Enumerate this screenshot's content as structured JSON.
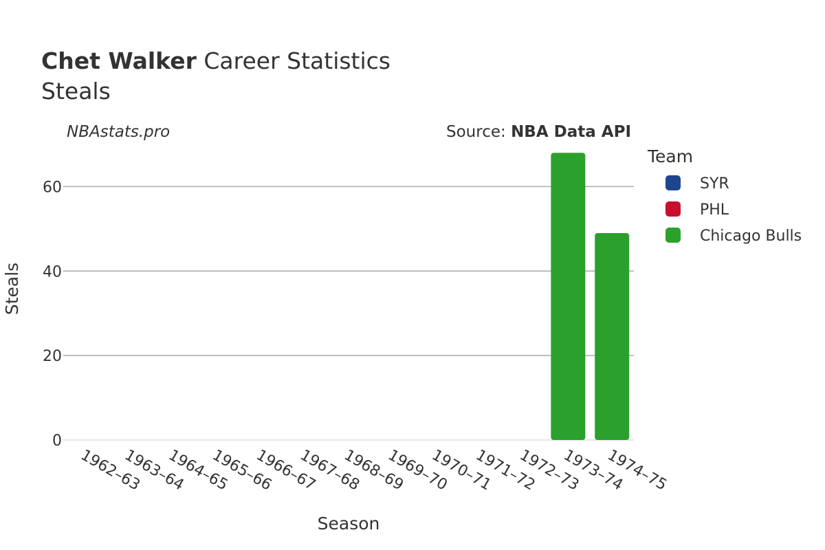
{
  "header": {
    "title_bold": "Chet Walker",
    "title_rest": " Career Statistics",
    "subtitle": "Steals",
    "site": "NBAstats.pro",
    "source_prefix": "Source: ",
    "source_bold": "NBA Data API"
  },
  "legend": {
    "title": "Team",
    "items": [
      {
        "name": "SYR",
        "color": "#1f4590"
      },
      {
        "name": "PHL",
        "color": "#c8102e"
      },
      {
        "name": "Chicago Bulls",
        "color": "#2ca02c"
      }
    ]
  },
  "chart_data": {
    "type": "bar",
    "xlabel": "Season",
    "ylabel": "Steals",
    "categories": [
      "1962–63",
      "1963–64",
      "1964–65",
      "1965–66",
      "1966–67",
      "1967–68",
      "1968–69",
      "1969–70",
      "1970–71",
      "1971–72",
      "1972–73",
      "1973–74",
      "1974–75"
    ],
    "ylim": [
      0,
      70
    ],
    "yticks": [
      0,
      20,
      40,
      60
    ],
    "grid": true,
    "legend_position": "right",
    "series": [
      {
        "name": "SYR",
        "color": "#1f4590",
        "values": [
          0,
          0,
          0,
          0,
          0,
          0,
          0,
          0,
          0,
          0,
          0,
          0,
          0
        ]
      },
      {
        "name": "PHL",
        "color": "#c8102e",
        "values": [
          0,
          0,
          0,
          0,
          0,
          0,
          0,
          0,
          0,
          0,
          0,
          0,
          0
        ]
      },
      {
        "name": "Chicago Bulls",
        "color": "#2ca02c",
        "values": [
          0,
          0,
          0,
          0,
          0,
          0,
          0,
          0,
          0,
          0,
          0,
          68,
          49
        ]
      }
    ]
  }
}
